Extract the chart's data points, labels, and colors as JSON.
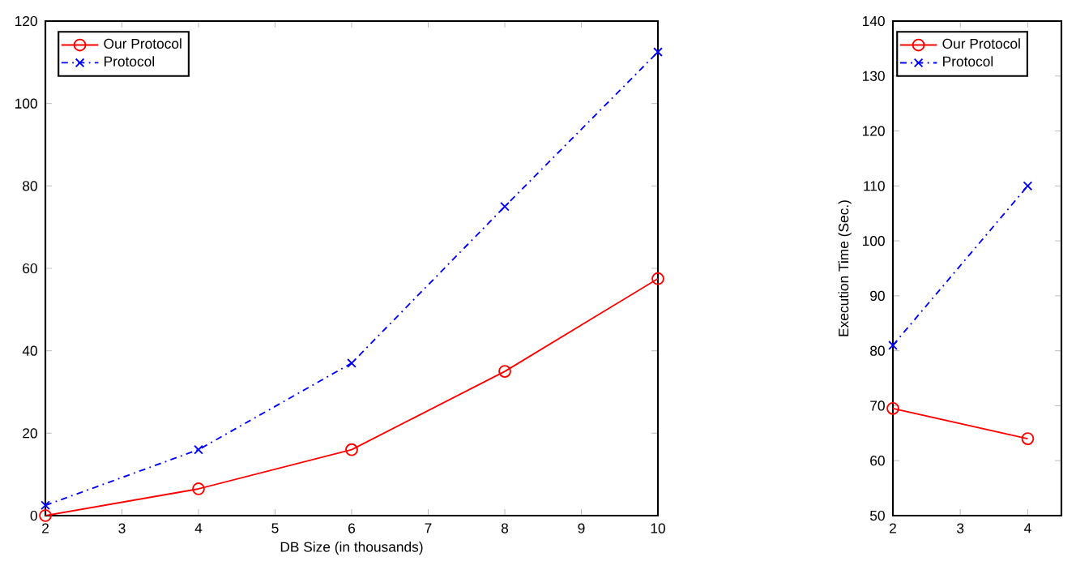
{
  "chart_data": [
    {
      "type": "line",
      "xlabel": "DB Size (in thousands)",
      "x": [
        2,
        4,
        6,
        8,
        10
      ],
      "xlim": [
        2,
        10
      ],
      "xticks": [
        2,
        3,
        4,
        5,
        6,
        7,
        8,
        9,
        10
      ],
      "ylim": [
        0,
        120
      ],
      "yticks": [
        0,
        20,
        40,
        60,
        80,
        100,
        120
      ],
      "legend": "top left",
      "series": [
        {
          "name": "Our Protocol",
          "color": "#ff0000",
          "values": [
            0,
            6.5,
            16,
            35,
            57.5
          ],
          "marker": "circle",
          "line_style": "solid"
        },
        {
          "name": "Protocol",
          "color": "#0000ff",
          "values": [
            2.5,
            16,
            37,
            75,
            112.5
          ],
          "marker": "cross",
          "line_style": "dashed"
        }
      ]
    },
    {
      "type": "line",
      "ylabel": "Execution Time (Sec.)",
      "x": [
        2,
        4
      ],
      "xlim": [
        2,
        4.5
      ],
      "xticks": [
        2,
        3,
        4
      ],
      "ylim": [
        50,
        140
      ],
      "yticks": [
        50,
        60,
        70,
        80,
        90,
        100,
        110,
        120,
        130,
        140
      ],
      "legend": "top left",
      "series": [
        {
          "name": "Our Protocol",
          "color": "#ff0000",
          "values": [
            69.5,
            64
          ],
          "marker": "circle",
          "line_style": "solid"
        },
        {
          "name": "Protocol",
          "color": "#0000ff",
          "values": [
            81,
            110
          ],
          "marker": "cross",
          "line_style": "dashed"
        }
      ]
    }
  ]
}
